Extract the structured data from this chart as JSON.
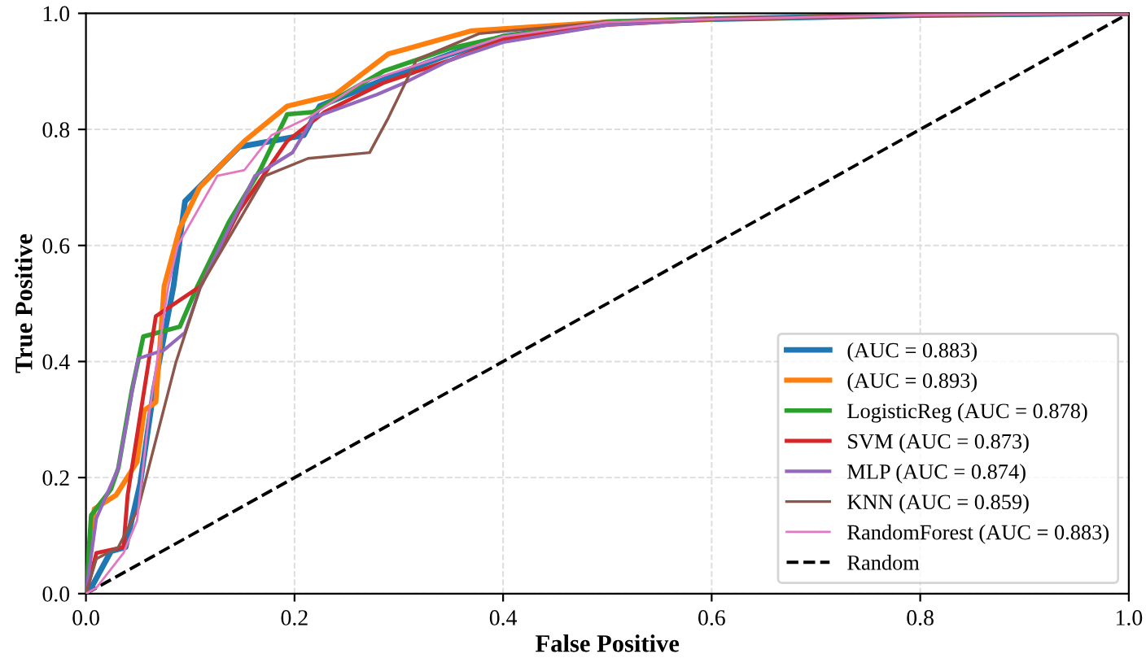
{
  "chart_data": {
    "type": "line",
    "xlabel": "False Positive",
    "ylabel": "True Positive",
    "xlim": [
      0.0,
      1.0
    ],
    "ylim": [
      0.0,
      1.0
    ],
    "xticks": [
      {
        "value": 0,
        "label": "0.0"
      },
      0.2,
      0.4,
      0.6,
      0.8,
      {
        "value": 1,
        "label": "1.0"
      }
    ],
    "yticks": [
      {
        "value": 0,
        "label": "0.0"
      },
      0.2,
      0.4,
      0.6,
      0.8,
      {
        "value": 1,
        "label": "1.0"
      }
    ],
    "grid": true,
    "legend": "bottom right",
    "marker": "none",
    "line_style": "solid",
    "series": [
      {
        "name": "(AUC = 0.883)",
        "color": "#1f77b4",
        "x": [
          0,
          0.005,
          0.024,
          0.038,
          0.052,
          0.065,
          0.084,
          0.095,
          0.147,
          0.209,
          0.224,
          0.305,
          0.35,
          0.4,
          0.5,
          0.6,
          0.8,
          1
        ],
        "values": [
          0,
          0.01,
          0.073,
          0.08,
          0.19,
          0.35,
          0.53,
          0.676,
          0.77,
          0.79,
          0.84,
          0.9,
          0.93,
          0.96,
          0.985,
          0.99,
          0.997,
          1
        ]
      },
      {
        "name": "(AUC = 0.893)",
        "color": "#ff7f0e",
        "x": [
          0,
          0.008,
          0.029,
          0.049,
          0.056,
          0.067,
          0.075,
          0.09,
          0.109,
          0.152,
          0.193,
          0.239,
          0.29,
          0.37,
          0.5,
          0.6
        ],
        "values": [
          0,
          0.146,
          0.17,
          0.227,
          0.316,
          0.33,
          0.53,
          0.63,
          0.7,
          0.78,
          0.84,
          0.86,
          0.93,
          0.97,
          0.985,
          0.99
        ]
      },
      {
        "name": "LogisticReg (AUC = 0.878)",
        "color": "#2ca02c",
        "x": [
          0,
          0.005,
          0.024,
          0.031,
          0.044,
          0.055,
          0.09,
          0.107,
          0.137,
          0.167,
          0.193,
          0.218,
          0.285,
          0.35,
          0.4,
          0.5,
          0.6,
          0.8,
          1
        ],
        "values": [
          0,
          0.135,
          0.18,
          0.216,
          0.35,
          0.443,
          0.46,
          0.53,
          0.64,
          0.73,
          0.826,
          0.83,
          0.9,
          0.94,
          0.96,
          0.985,
          0.99,
          0.997,
          1
        ]
      },
      {
        "name": "SVM (AUC = 0.873)",
        "color": "#d62728",
        "x": [
          0,
          0.01,
          0.036,
          0.04,
          0.067,
          0.11,
          0.147,
          0.193,
          0.229,
          0.285,
          0.35,
          0.4,
          0.5,
          0.6,
          0.8,
          1
        ],
        "values": [
          0,
          0.07,
          0.08,
          0.17,
          0.478,
          0.53,
          0.66,
          0.78,
          0.83,
          0.88,
          0.92,
          0.955,
          0.98,
          0.99,
          0.997,
          1
        ]
      },
      {
        "name": "MLP (AUC = 0.874)",
        "color": "#9467bd",
        "x": [
          0,
          0.01,
          0.031,
          0.05,
          0.075,
          0.095,
          0.11,
          0.162,
          0.198,
          0.218,
          0.279,
          0.305,
          0.35,
          0.4,
          0.5,
          0.6,
          0.8,
          1
        ],
        "values": [
          0,
          0.13,
          0.216,
          0.405,
          0.42,
          0.45,
          0.53,
          0.72,
          0.76,
          0.82,
          0.86,
          0.88,
          0.92,
          0.95,
          0.98,
          0.99,
          0.997,
          1
        ]
      },
      {
        "name": "KNN (AUC = 0.859)",
        "color": "#8c564b",
        "x": [
          0,
          0.01,
          0.031,
          0.05,
          0.086,
          0.11,
          0.172,
          0.213,
          0.272,
          0.29,
          0.317,
          0.377,
          0.5,
          0.6,
          0.8,
          1
        ],
        "values": [
          0,
          0.06,
          0.08,
          0.146,
          0.397,
          0.53,
          0.72,
          0.75,
          0.76,
          0.82,
          0.92,
          0.965,
          0.985,
          0.99,
          0.997,
          1
        ]
      },
      {
        "name": "RandomForest (AUC = 0.883)",
        "color": "#e377c2",
        "x": [
          0,
          0.01,
          0.036,
          0.049,
          0.061,
          0.079,
          0.088,
          0.126,
          0.152,
          0.178,
          0.213,
          0.264,
          0.35,
          0.4,
          0.5,
          0.6,
          0.8,
          1
        ],
        "values": [
          0,
          0.01,
          0.07,
          0.126,
          0.316,
          0.53,
          0.6,
          0.72,
          0.73,
          0.79,
          0.82,
          0.88,
          0.93,
          0.96,
          0.985,
          0.99,
          0.997,
          1
        ]
      },
      {
        "name": "Random",
        "color": "#000000",
        "line_style": "dashed",
        "x": [
          0,
          1
        ],
        "values": [
          0,
          1
        ]
      }
    ]
  }
}
